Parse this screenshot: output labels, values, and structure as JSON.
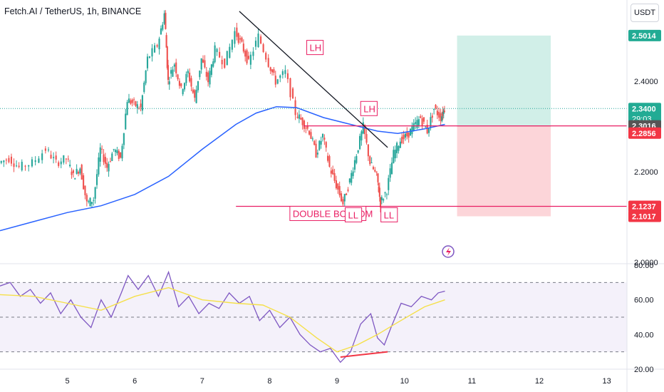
{
  "header": {
    "title": "Fetch.AI / TetherUS, 1h, BINANCE",
    "unit": "USDT"
  },
  "colors": {
    "up": "#26a69a",
    "down": "#ef5350",
    "ma": "#2962ff",
    "rsi": "#7e57c2",
    "rsi_ma": "#f5e04a",
    "annotation": "#e91e63",
    "target_zone": "#d1efe8",
    "stop_zone": "#fcd5d9",
    "trendline": "#131722",
    "divergence": "#f23645"
  },
  "chart_data": [
    {
      "type": "candlestick",
      "title": "Fetch.AI / TetherUS, 1h, BINANCE",
      "ylim": [
        2.0,
        2.58
      ],
      "xlim": [
        4.0,
        13.3
      ],
      "x_ticks": [
        5,
        6,
        7,
        8,
        9,
        10,
        11,
        12,
        13
      ],
      "y_ticks": [
        2.0,
        2.1,
        2.2,
        2.3,
        2.4
      ],
      "y_tick_labels": [
        "2.0000",
        "2.1000",
        "2.2000",
        "2.3000",
        "2.4000"
      ],
      "price_labels": [
        {
          "value": 2.5014,
          "text": "2.5014",
          "color": "#22ab94"
        },
        {
          "value": 2.34,
          "text": "2.3400",
          "color": "#22ab94",
          "sub": "29:03"
        },
        {
          "value": 2.3016,
          "text": "2.3016",
          "color": "#555555"
        },
        {
          "value": 2.2856,
          "text": "2.2856",
          "color": "#f23645"
        },
        {
          "value": 2.1237,
          "text": "2.1237",
          "color": "#f23645"
        },
        {
          "value": 2.1017,
          "text": "2.1017",
          "color": "#f23645"
        }
      ],
      "price_path": [
        [
          4.0,
          2.22
        ],
        [
          4.15,
          2.23
        ],
        [
          4.3,
          2.21
        ],
        [
          4.5,
          2.22
        ],
        [
          4.7,
          2.25
        ],
        [
          4.85,
          2.22
        ],
        [
          5.0,
          2.23
        ],
        [
          5.1,
          2.19
        ],
        [
          5.2,
          2.21
        ],
        [
          5.3,
          2.13
        ],
        [
          5.4,
          2.14
        ],
        [
          5.5,
          2.25
        ],
        [
          5.6,
          2.21
        ],
        [
          5.7,
          2.25
        ],
        [
          5.8,
          2.23
        ],
        [
          5.9,
          2.36
        ],
        [
          6.0,
          2.35
        ],
        [
          6.1,
          2.34
        ],
        [
          6.2,
          2.45
        ],
        [
          6.35,
          2.48
        ],
        [
          6.45,
          2.55
        ],
        [
          6.5,
          2.4
        ],
        [
          6.6,
          2.44
        ],
        [
          6.7,
          2.38
        ],
        [
          6.8,
          2.42
        ],
        [
          6.9,
          2.36
        ],
        [
          7.0,
          2.45
        ],
        [
          7.1,
          2.4
        ],
        [
          7.2,
          2.47
        ],
        [
          7.35,
          2.44
        ],
        [
          7.5,
          2.51
        ],
        [
          7.6,
          2.48
        ],
        [
          7.7,
          2.44
        ],
        [
          7.85,
          2.5
        ],
        [
          8.0,
          2.44
        ],
        [
          8.1,
          2.4
        ],
        [
          8.25,
          2.42
        ],
        [
          8.4,
          2.33
        ],
        [
          8.5,
          2.31
        ],
        [
          8.6,
          2.29
        ],
        [
          8.7,
          2.24
        ],
        [
          8.8,
          2.28
        ],
        [
          8.9,
          2.21
        ],
        [
          9.0,
          2.17
        ],
        [
          9.1,
          2.13
        ],
        [
          9.2,
          2.18
        ],
        [
          9.3,
          2.24
        ],
        [
          9.4,
          2.3
        ],
        [
          9.5,
          2.22
        ],
        [
          9.6,
          2.19
        ],
        [
          9.65,
          2.13
        ],
        [
          9.75,
          2.16
        ],
        [
          9.85,
          2.24
        ],
        [
          9.95,
          2.27
        ],
        [
          10.05,
          2.28
        ],
        [
          10.15,
          2.3
        ],
        [
          10.25,
          2.32
        ],
        [
          10.35,
          2.29
        ],
        [
          10.45,
          2.34
        ],
        [
          10.55,
          2.32
        ],
        [
          10.6,
          2.34
        ]
      ],
      "moving_average": [
        [
          4.0,
          2.07
        ],
        [
          4.5,
          2.09
        ],
        [
          5.0,
          2.11
        ],
        [
          5.5,
          2.125
        ],
        [
          6.0,
          2.15
        ],
        [
          6.5,
          2.19
        ],
        [
          7.0,
          2.25
        ],
        [
          7.5,
          2.305
        ],
        [
          7.8,
          2.33
        ],
        [
          8.1,
          2.344
        ],
        [
          8.4,
          2.342
        ],
        [
          8.8,
          2.32
        ],
        [
          9.2,
          2.305
        ],
        [
          9.6,
          2.29
        ],
        [
          9.9,
          2.285
        ],
        [
          10.3,
          2.295
        ],
        [
          10.6,
          2.305
        ]
      ],
      "annotations": [
        {
          "text": "LH",
          "x": 8.55,
          "y": 2.475
        },
        {
          "text": "LH",
          "x": 9.35,
          "y": 2.34
        },
        {
          "text": "DOUBLE BOTTOM",
          "x": 8.3,
          "y": 2.108
        },
        {
          "text": "LL",
          "x": 9.12,
          "y": 2.105
        },
        {
          "text": "LL",
          "x": 9.65,
          "y": 2.105
        }
      ],
      "trendline": [
        [
          7.55,
          2.555
        ],
        [
          9.75,
          2.254
        ]
      ],
      "horizontal_lines": [
        {
          "value": 2.3016,
          "x_from": 8.5
        },
        {
          "value": 2.1237,
          "x_from": 7.5
        }
      ],
      "position": {
        "x_from": 10.78,
        "x_to": 12.17,
        "target": 2.5014,
        "entry": 2.3016,
        "stop": 2.1017
      }
    },
    {
      "type": "line",
      "title": "",
      "ylim": [
        20,
        80
      ],
      "y_ticks": [
        20,
        40,
        60,
        80
      ],
      "y_tick_labels": [
        "20.00",
        "40.00",
        "60.00",
        "80.00"
      ],
      "bands": [
        30,
        50,
        70
      ],
      "rsi_path": [
        [
          4.0,
          68
        ],
        [
          4.15,
          70
        ],
        [
          4.3,
          62
        ],
        [
          4.45,
          66
        ],
        [
          4.6,
          58
        ],
        [
          4.75,
          64
        ],
        [
          4.9,
          52
        ],
        [
          5.05,
          60
        ],
        [
          5.2,
          50
        ],
        [
          5.35,
          44
        ],
        [
          5.5,
          60
        ],
        [
          5.65,
          50
        ],
        [
          5.8,
          64
        ],
        [
          5.9,
          74
        ],
        [
          6.05,
          66
        ],
        [
          6.2,
          74
        ],
        [
          6.35,
          62
        ],
        [
          6.5,
          76
        ],
        [
          6.65,
          56
        ],
        [
          6.8,
          62
        ],
        [
          6.95,
          52
        ],
        [
          7.1,
          58
        ],
        [
          7.25,
          55
        ],
        [
          7.4,
          64
        ],
        [
          7.55,
          58
        ],
        [
          7.7,
          62
        ],
        [
          7.85,
          48
        ],
        [
          8.0,
          54
        ],
        [
          8.15,
          44
        ],
        [
          8.3,
          50
        ],
        [
          8.45,
          40
        ],
        [
          8.6,
          34
        ],
        [
          8.75,
          30
        ],
        [
          8.9,
          32
        ],
        [
          9.05,
          24
        ],
        [
          9.2,
          30
        ],
        [
          9.35,
          46
        ],
        [
          9.5,
          52
        ],
        [
          9.6,
          38
        ],
        [
          9.7,
          34
        ],
        [
          9.8,
          44
        ],
        [
          9.95,
          58
        ],
        [
          10.1,
          56
        ],
        [
          10.25,
          62
        ],
        [
          10.4,
          60
        ],
        [
          10.5,
          64
        ],
        [
          10.6,
          65
        ]
      ],
      "rsi_ma_path": [
        [
          4.0,
          63
        ],
        [
          4.5,
          62
        ],
        [
          5.0,
          58
        ],
        [
          5.5,
          54
        ],
        [
          6.0,
          62
        ],
        [
          6.5,
          67
        ],
        [
          7.0,
          60
        ],
        [
          7.5,
          58
        ],
        [
          7.9,
          57
        ],
        [
          8.3,
          50
        ],
        [
          8.7,
          38
        ],
        [
          9.0,
          30
        ],
        [
          9.3,
          34
        ],
        [
          9.6,
          40
        ],
        [
          9.9,
          47
        ],
        [
          10.3,
          56
        ],
        [
          10.6,
          60
        ]
      ],
      "divergence_line": [
        [
          9.05,
          27
        ],
        [
          9.75,
          30
        ]
      ]
    }
  ]
}
